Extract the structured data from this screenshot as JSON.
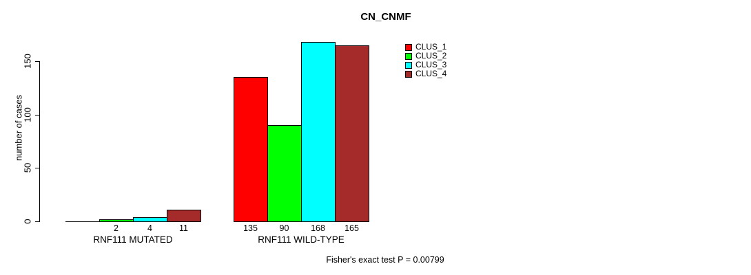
{
  "chart_data": {
    "type": "bar",
    "title": "CN_CNMF",
    "xlabel": "",
    "ylabel": "number of cases",
    "ylim": [
      0,
      175
    ],
    "yticks": [
      0,
      50,
      100,
      150
    ],
    "grid": false,
    "legend_position": "top-right-inside",
    "legend": [
      {
        "label": "CLUS_1",
        "color": "#FF0000"
      },
      {
        "label": "CLUS_2",
        "color": "#00FF00"
      },
      {
        "label": "CLUS_3",
        "color": "#00FFFF"
      },
      {
        "label": "CLUS_4",
        "color": "#A52A2A"
      }
    ],
    "categories": [
      "RNF111 MUTATED",
      "RNF111 WILD-TYPE"
    ],
    "series": [
      {
        "name": "CLUS_1",
        "values": [
          0,
          135
        ]
      },
      {
        "name": "CLUS_2",
        "values": [
          2,
          90
        ]
      },
      {
        "name": "CLUS_3",
        "values": [
          4,
          168
        ]
      },
      {
        "name": "CLUS_4",
        "values": [
          11,
          165
        ]
      }
    ],
    "groups": [
      {
        "label": "RNF111 MUTATED",
        "values": [
          0,
          2,
          4,
          11
        ],
        "bar_labels": [
          "",
          "2",
          "4",
          "11"
        ]
      },
      {
        "label": "RNF111 WILD-TYPE",
        "values": [
          135,
          90,
          168,
          165
        ],
        "bar_labels": [
          "135",
          "90",
          "168",
          "165"
        ]
      }
    ],
    "annotation": "Fisher's exact test P = 0.00799"
  }
}
